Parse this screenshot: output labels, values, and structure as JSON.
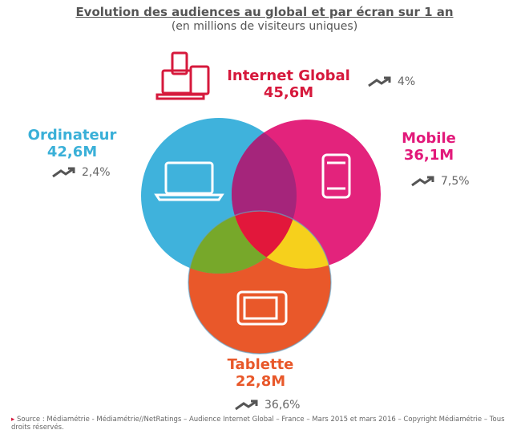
{
  "header": {
    "title": "Evolution des audiences au global et par écran sur 1 an",
    "subtitle": "(en millions de visiteurs uniques)"
  },
  "nodes": [
    {
      "label": "Internet Global",
      "value": "45,6M",
      "growth": "4%"
    },
    {
      "label": "Ordinateur",
      "value": "42,6M",
      "growth": "2,4%"
    },
    {
      "label": "Mobile",
      "value": "36,1M",
      "growth": "7,5%"
    },
    {
      "label": "Tablette",
      "value": "22,8M",
      "growth": "36,6%"
    }
  ],
  "footer": {
    "source": "Source : Médiamétrie - Médiamétrie//NetRatings – Audience Internet Global – France – Mars 2015 et mars 2016 – Copyright Médiamétrie – Tous droits réservés."
  }
}
